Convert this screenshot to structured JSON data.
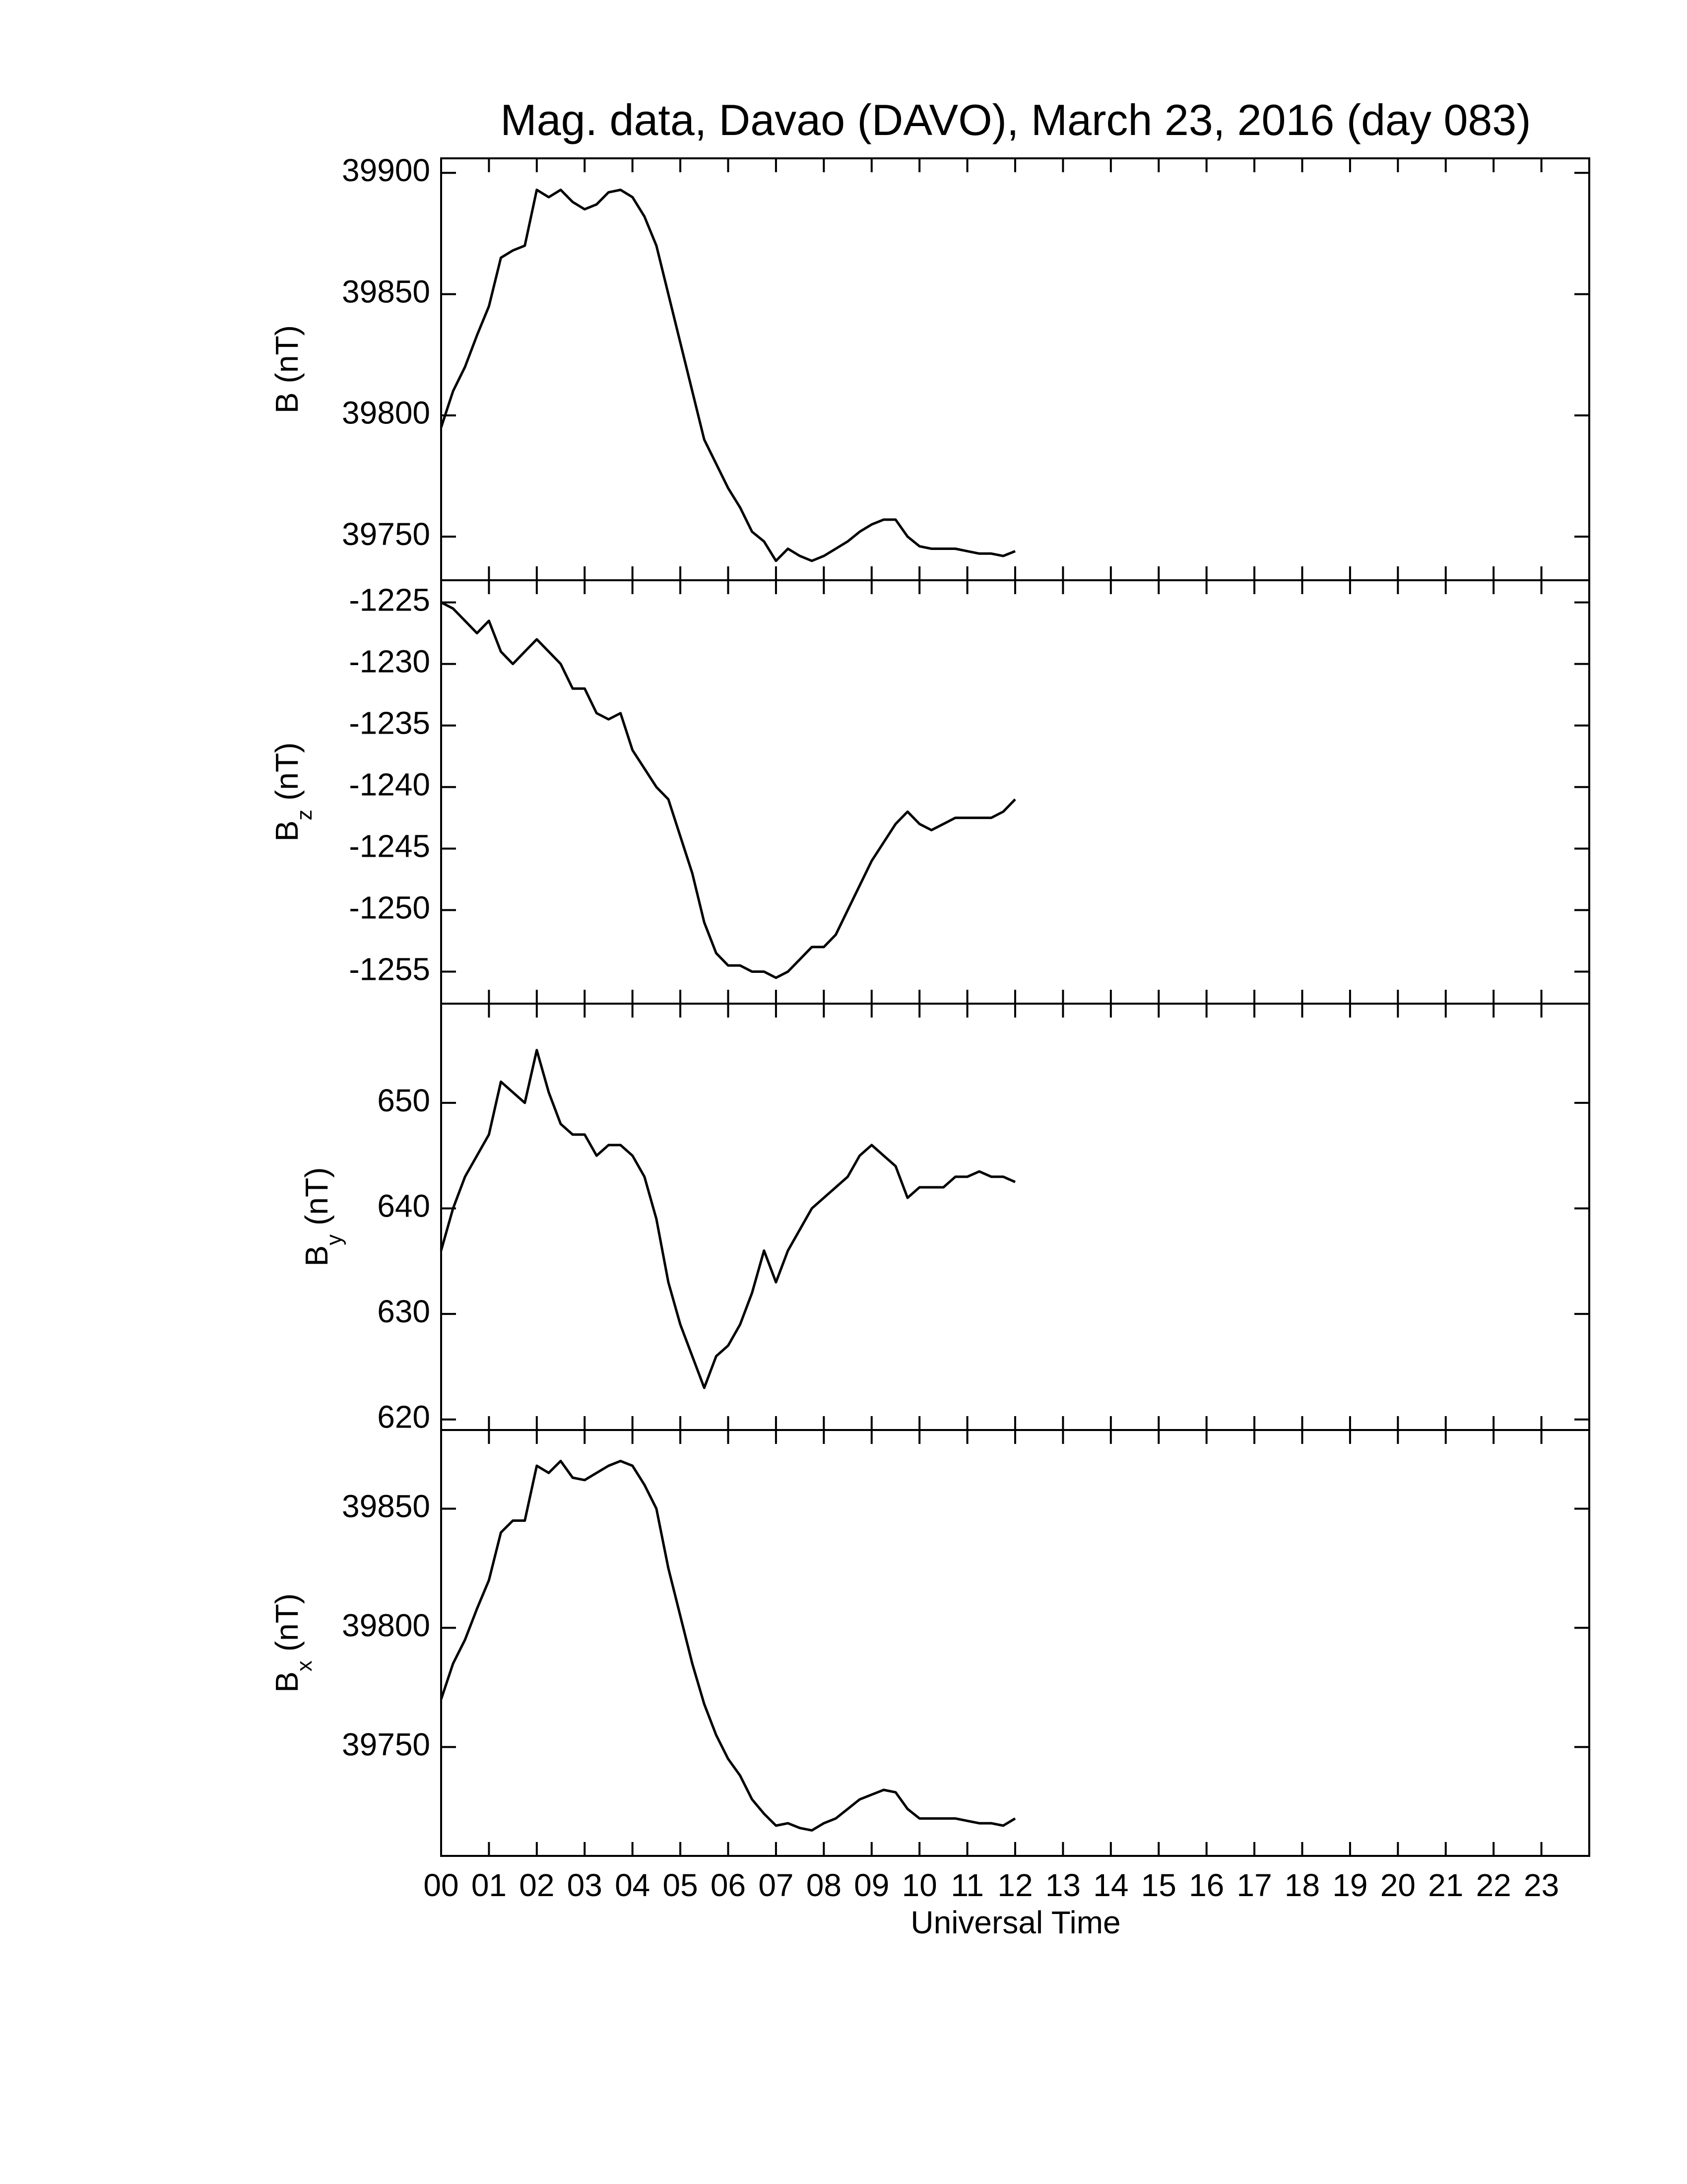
{
  "chart_data": [
    {
      "type": "line",
      "title": "Mag. data, Davao (DAVO), March 23, 2016 (day 083)",
      "ylabel": "B",
      "ylabel_unit": "(nT)",
      "x": [
        0,
        0.25,
        0.5,
        0.75,
        1,
        1.25,
        1.5,
        1.75,
        2,
        2.25,
        2.5,
        2.75,
        3,
        3.25,
        3.5,
        3.75,
        4,
        4.25,
        4.5,
        4.75,
        5,
        5.25,
        5.5,
        5.75,
        6,
        6.25,
        6.5,
        6.75,
        7,
        7.25,
        7.5,
        7.75,
        8,
        8.25,
        8.5,
        8.75,
        9,
        9.25,
        9.5,
        9.75,
        10,
        10.25,
        10.5,
        10.75,
        11,
        11.25,
        11.5,
        11.75,
        12
      ],
      "series": [
        {
          "color": "#000000",
          "values": [
            39795,
            39810,
            39820,
            39833,
            39845,
            39865,
            39868,
            39870,
            39893,
            39890,
            39893,
            39888,
            39885,
            39887,
            39892,
            39893,
            39890,
            39882,
            39870,
            39850,
            39830,
            39810,
            39790,
            39780,
            39770,
            39762,
            39752,
            39748,
            39740,
            39745,
            39742,
            39740,
            39742,
            39745,
            39748,
            39752,
            39755,
            39757,
            39757,
            39750,
            39746,
            39745,
            39745,
            39745,
            39744,
            39743,
            39743,
            39742,
            39744
          ]
        }
      ],
      "xlim": [
        0,
        24
      ],
      "ylim": [
        39732,
        39906
      ],
      "yticks": [
        39750,
        39800,
        39850,
        39900
      ]
    },
    {
      "type": "line",
      "ylabel": "B",
      "ylabel_sub": "z",
      "ylabel_unit": "(nT)",
      "x": [
        0,
        0.25,
        0.5,
        0.75,
        1,
        1.25,
        1.5,
        1.75,
        2,
        2.25,
        2.5,
        2.75,
        3,
        3.25,
        3.5,
        3.75,
        4,
        4.25,
        4.5,
        4.75,
        5,
        5.25,
        5.5,
        5.75,
        6,
        6.25,
        6.5,
        6.75,
        7,
        7.25,
        7.5,
        7.75,
        8,
        8.25,
        8.5,
        8.75,
        9,
        9.25,
        9.5,
        9.75,
        10,
        10.25,
        10.5,
        10.75,
        11,
        11.25,
        11.5,
        11.75,
        12
      ],
      "series": [
        {
          "color": "#000000",
          "values": [
            -1225,
            -1225.5,
            -1226.5,
            -1227.5,
            -1226.5,
            -1229,
            -1230,
            -1229,
            -1228,
            -1229,
            -1230,
            -1232,
            -1232,
            -1234,
            -1234.5,
            -1234,
            -1237,
            -1238.5,
            -1240,
            -1241,
            -1244,
            -1247,
            -1251,
            -1253.5,
            -1254.5,
            -1254.5,
            -1255,
            -1255,
            -1255.5,
            -1255,
            -1254,
            -1253,
            -1253,
            -1252,
            -1250,
            -1248,
            -1246,
            -1244.5,
            -1243,
            -1242,
            -1243,
            -1243.5,
            -1243,
            -1242.5,
            -1242.5,
            -1242.5,
            -1242.5,
            -1242,
            -1241
          ]
        }
      ],
      "xlim": [
        0,
        24
      ],
      "ylim": [
        -1257.6,
        -1223.2
      ],
      "yticks": [
        -1255,
        -1250,
        -1245,
        -1240,
        -1235,
        -1230,
        -1225
      ]
    },
    {
      "type": "line",
      "ylabel": "B",
      "ylabel_sub": "y",
      "ylabel_unit": "(nT)",
      "x": [
        0,
        0.25,
        0.5,
        0.75,
        1,
        1.25,
        1.5,
        1.75,
        2,
        2.25,
        2.5,
        2.75,
        3,
        3.25,
        3.5,
        3.75,
        4,
        4.25,
        4.5,
        4.75,
        5,
        5.25,
        5.5,
        5.75,
        6,
        6.25,
        6.5,
        6.75,
        7,
        7.25,
        7.5,
        7.75,
        8,
        8.25,
        8.5,
        8.75,
        9,
        9.25,
        9.5,
        9.75,
        10,
        10.25,
        10.5,
        10.75,
        11,
        11.25,
        11.5,
        11.75,
        12
      ],
      "series": [
        {
          "color": "#000000",
          "values": [
            636,
            640,
            643,
            645,
            647,
            652,
            651,
            650,
            655,
            651,
            648,
            647,
            647,
            645,
            646,
            646,
            645,
            643,
            639,
            633,
            629,
            626,
            623,
            626,
            627,
            629,
            632,
            636,
            633,
            636,
            638,
            640,
            641,
            642,
            643,
            645,
            646,
            645,
            644,
            641,
            642,
            642,
            642,
            643,
            643,
            643.5,
            643,
            643,
            642.5
          ]
        }
      ],
      "xlim": [
        0,
        24
      ],
      "ylim": [
        619,
        659.4
      ],
      "yticks": [
        620,
        630,
        640,
        650
      ]
    },
    {
      "type": "line",
      "ylabel": "B",
      "ylabel_sub": "x",
      "ylabel_unit": "(nT)",
      "xlabel": "Universal Time",
      "x": [
        0,
        0.25,
        0.5,
        0.75,
        1,
        1.25,
        1.5,
        1.75,
        2,
        2.25,
        2.5,
        2.75,
        3,
        3.25,
        3.5,
        3.75,
        4,
        4.25,
        4.5,
        4.75,
        5,
        5.25,
        5.5,
        5.75,
        6,
        6.25,
        6.5,
        6.75,
        7,
        7.25,
        7.5,
        7.75,
        8,
        8.25,
        8.5,
        8.75,
        9,
        9.25,
        9.5,
        9.75,
        10,
        10.25,
        10.5,
        10.75,
        11,
        11.25,
        11.5,
        11.75,
        12
      ],
      "series": [
        {
          "color": "#000000",
          "values": [
            39770,
            39785,
            39795,
            39808,
            39820,
            39840,
            39845,
            39845,
            39868,
            39865,
            39870,
            39863,
            39862,
            39865,
            39868,
            39870,
            39868,
            39860,
            39850,
            39825,
            39805,
            39785,
            39768,
            39755,
            39745,
            39738,
            39728,
            39722,
            39717,
            39718,
            39716,
            39715,
            39718,
            39720,
            39724,
            39728,
            39730,
            39732,
            39731,
            39724,
            39720,
            39720,
            39720,
            39720,
            39719,
            39718,
            39718,
            39717,
            39720
          ]
        }
      ],
      "xlim": [
        0,
        24
      ],
      "ylim": [
        39704.3,
        39883
      ],
      "yticks": [
        39750,
        39800,
        39850
      ],
      "xticks": [
        {
          "value": 0,
          "label": "00"
        },
        {
          "value": 1,
          "label": "01"
        },
        {
          "value": 2,
          "label": "02"
        },
        {
          "value": 3,
          "label": "03"
        },
        {
          "value": 4,
          "label": "04"
        },
        {
          "value": 5,
          "label": "05"
        },
        {
          "value": 6,
          "label": "06"
        },
        {
          "value": 7,
          "label": "07"
        },
        {
          "value": 8,
          "label": "08"
        },
        {
          "value": 9,
          "label": "09"
        },
        {
          "value": 10,
          "label": "10"
        },
        {
          "value": 11,
          "label": "11"
        },
        {
          "value": 12,
          "label": "12"
        },
        {
          "value": 13,
          "label": "13"
        },
        {
          "value": 14,
          "label": "14"
        },
        {
          "value": 15,
          "label": "15"
        },
        {
          "value": 16,
          "label": "16"
        },
        {
          "value": 17,
          "label": "17"
        },
        {
          "value": 18,
          "label": "18"
        },
        {
          "value": 19,
          "label": "19"
        },
        {
          "value": 20,
          "label": "20"
        },
        {
          "value": 21,
          "label": "21"
        },
        {
          "value": 22,
          "label": "22"
        },
        {
          "value": 23,
          "label": "23"
        }
      ]
    }
  ]
}
